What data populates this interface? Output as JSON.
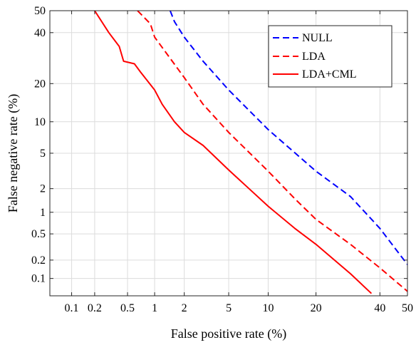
{
  "chart_data": {
    "type": "line",
    "title": "",
    "xlabel": "False positive rate (%)",
    "ylabel": "False negative rate (%)",
    "x_scale": "probit",
    "y_scale": "probit",
    "xlim": [
      0.05,
      50
    ],
    "ylim": [
      0.05,
      50
    ],
    "grid": true,
    "legend_position": "top-right",
    "x_ticks": [
      {
        "value": 0.1,
        "label": "0.1"
      },
      {
        "value": 0.2,
        "label": "0.2"
      },
      {
        "value": 0.5,
        "label": "0.5"
      },
      {
        "value": 1,
        "label": "1"
      },
      {
        "value": 2,
        "label": "2"
      },
      {
        "value": 5,
        "label": "5"
      },
      {
        "value": 10,
        "label": "10"
      },
      {
        "value": 20,
        "label": "20"
      },
      {
        "value": 40,
        "label": "40"
      },
      {
        "value": 50,
        "label": "50"
      }
    ],
    "y_ticks": [
      {
        "value": 0.1,
        "label": "0.1"
      },
      {
        "value": 0.2,
        "label": "0.2"
      },
      {
        "value": 0.5,
        "label": "0.5"
      },
      {
        "value": 1,
        "label": "1"
      },
      {
        "value": 2,
        "label": "2"
      },
      {
        "value": 5,
        "label": "5"
      },
      {
        "value": 10,
        "label": "10"
      },
      {
        "value": 20,
        "label": "20"
      },
      {
        "value": 40,
        "label": "40"
      },
      {
        "value": 50,
        "label": "50"
      }
    ],
    "series": [
      {
        "name": "NULL",
        "color": "#0000ff",
        "style": "dashed",
        "points": [
          [
            1.45,
            50
          ],
          [
            1.6,
            45
          ],
          [
            2,
            38
          ],
          [
            3,
            28
          ],
          [
            5,
            18
          ],
          [
            10,
            8.5
          ],
          [
            20,
            3.2
          ],
          [
            30,
            1.6
          ],
          [
            40,
            0.6
          ],
          [
            50,
            0.17
          ]
        ]
      },
      {
        "name": "LDA",
        "color": "#ff0000",
        "style": "dashed",
        "points": [
          [
            0.65,
            50
          ],
          [
            0.9,
            44
          ],
          [
            1,
            38
          ],
          [
            2,
            22
          ],
          [
            3,
            14
          ],
          [
            5,
            8
          ],
          [
            10,
            3.2
          ],
          [
            15,
            1.5
          ],
          [
            20,
            0.8
          ],
          [
            30,
            0.35
          ],
          [
            40,
            0.15
          ],
          [
            50,
            0.06
          ]
        ]
      },
      {
        "name": "LDA+CML",
        "color": "#ff0000",
        "style": "solid",
        "points": [
          [
            0.2,
            50
          ],
          [
            0.3,
            40
          ],
          [
            0.4,
            34
          ],
          [
            0.45,
            28
          ],
          [
            0.6,
            27
          ],
          [
            0.7,
            24
          ],
          [
            1,
            18
          ],
          [
            1.2,
            14
          ],
          [
            1.6,
            10
          ],
          [
            2,
            8
          ],
          [
            3,
            6
          ],
          [
            5,
            3.3
          ],
          [
            7,
            2.1
          ],
          [
            10,
            1.2
          ],
          [
            15,
            0.6
          ],
          [
            20,
            0.35
          ],
          [
            30,
            0.12
          ],
          [
            37,
            0.055
          ]
        ]
      }
    ]
  }
}
